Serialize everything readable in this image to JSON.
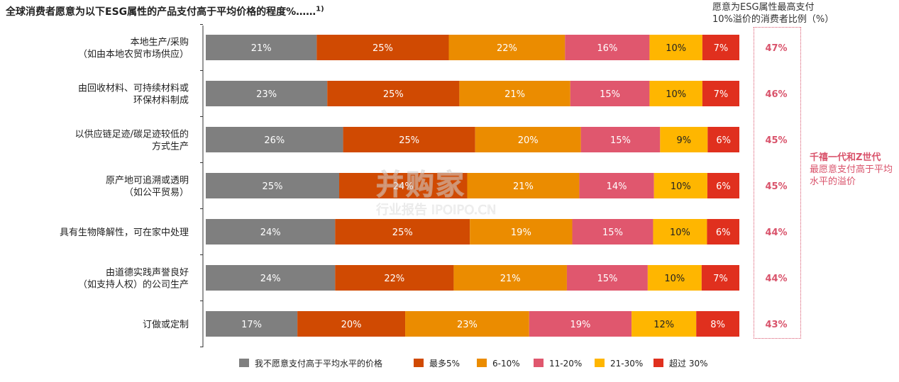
{
  "title": "全球消费者愿意为以下ESG属性的产品支付高于平均价格的程度%……",
  "title_sup": "1)",
  "right_header": [
    "愿意为ESG属性最高支付",
    "10%溢价的消费者比例（%）"
  ],
  "side_note": {
    "bold": "千禧一代和Z世代",
    "text": "最愿意支付高于平均水平的溢价"
  },
  "watermark": {
    "brand": "并购家",
    "sub": "行业报告 IPOIPO.CN"
  },
  "colors": {
    "accent_pink": "#d9536b"
  },
  "chart_data": {
    "type": "bar",
    "orientation": "horizontal",
    "stacked": true,
    "normalized": true,
    "categories": [
      [
        "本地生产/采购",
        "（如由本地农贸市场供应）"
      ],
      [
        "由回收材料、可持续材料或",
        "环保材料制成"
      ],
      [
        "以供应链足迹/碳足迹较低的",
        "方式生产"
      ],
      [
        "原产地可追溯或透明",
        "（如公平贸易）"
      ],
      [
        "具有生物降解性，可在家中处理"
      ],
      [
        "由道德实践声誉良好",
        "（如支持人权）的公司生产"
      ],
      [
        "订做或定制"
      ]
    ],
    "series": [
      {
        "name": "我不愿意支付高于平均水平的价格",
        "color": "#7f7f7f",
        "values": [
          21,
          23,
          26,
          25,
          24,
          24,
          17
        ]
      },
      {
        "name": "最多5%",
        "color": "#d04a02",
        "values": [
          25,
          25,
          25,
          24,
          25,
          22,
          20
        ]
      },
      {
        "name": "6-10%",
        "color": "#eb8c00",
        "values": [
          22,
          21,
          20,
          21,
          19,
          21,
          23
        ]
      },
      {
        "name": "11-20%",
        "color": "#e0576e",
        "values": [
          16,
          15,
          15,
          14,
          15,
          15,
          19
        ]
      },
      {
        "name": "21-30%",
        "color": "#ffb600",
        "values": [
          10,
          10,
          9,
          10,
          10,
          10,
          12
        ]
      },
      {
        "name": "超过 30%",
        "color": "#e0301e",
        "values": [
          7,
          7,
          6,
          6,
          6,
          7,
          8
        ]
      }
    ],
    "value_suffix": "%",
    "right_values": [
      "47%",
      "46%",
      "45%",
      "45%",
      "44%",
      "44%",
      "43%"
    ],
    "legend_position": "bottom",
    "grid": false
  }
}
